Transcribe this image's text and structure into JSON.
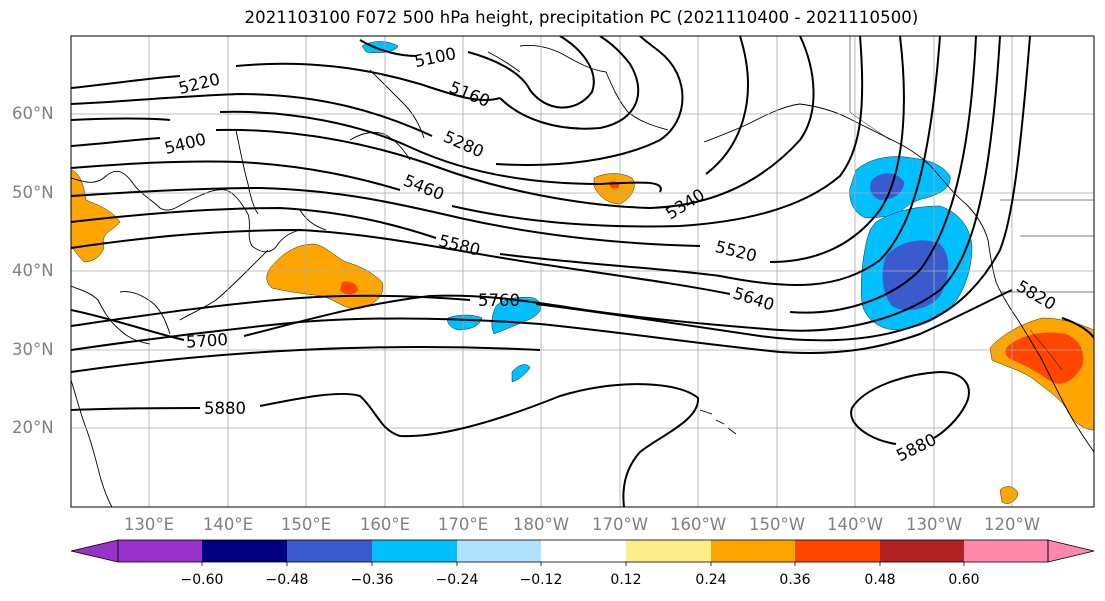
{
  "title": "2021103100 F072 500 hPa height, precipitation PC (2021110400 - 2021110500)",
  "lat_labels": [
    "60°N",
    "50°N",
    "40°N",
    "30°N",
    "20°N"
  ],
  "lon_labels": [
    "130°E",
    "140°E",
    "150°E",
    "160°E",
    "170°E",
    "180°W",
    "170°W",
    "160°W",
    "150°W",
    "140°W",
    "130°W",
    "120°W"
  ],
  "contour_labels": {
    "c5100": "5100",
    "c5160": "5160",
    "c5220": "5220",
    "c5280": "5280",
    "c5340": "5340",
    "c5400": "5400",
    "c5460": "5460",
    "c5520": "5520",
    "c5580": "5580",
    "c5640": "5640",
    "c5700": "5700",
    "c5760": "5760",
    "c5820": "5820",
    "c5880a": "5880",
    "c5880b": "5880"
  },
  "colorbar": {
    "ticks": [
      "−0.60",
      "−0.48",
      "−0.36",
      "−0.24",
      "−0.12",
      "0.12",
      "0.24",
      "0.36",
      "0.48",
      "0.60"
    ],
    "colors": [
      "#9932cc",
      "#000080",
      "#3a5bcd",
      "#00bfff",
      "#b0e2ff",
      "#ffffff",
      "#ffec8b",
      "#ffa500",
      "#ff4500",
      "#b22222",
      "#ff88aa"
    ]
  },
  "colors": {
    "neg_light": "#b0e2ff",
    "neg_mid": "#00bfff",
    "neg_strong": "#3a5bcd",
    "pos_light": "#ffec8b",
    "pos_mid": "#ffa500",
    "pos_strong": "#ff4500",
    "grid": "#aaaaaa",
    "axis_label": "#808080"
  }
}
